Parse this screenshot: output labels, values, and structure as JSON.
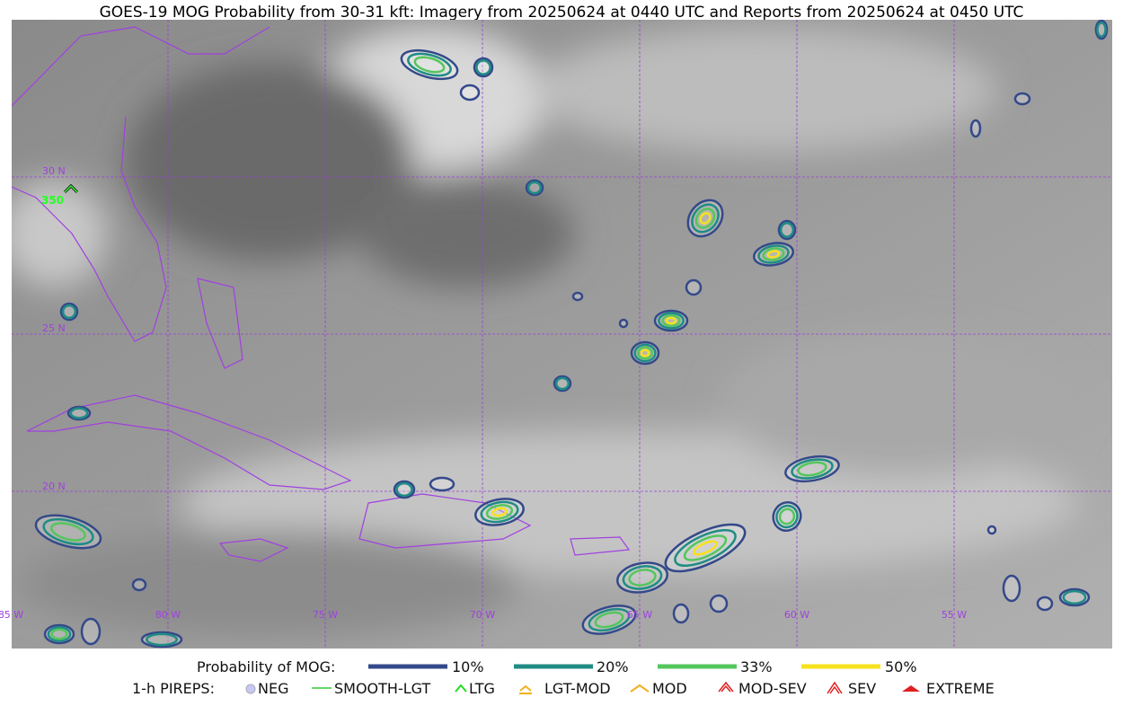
{
  "title": "GOES-19 MOG Probability from 30-31 kft: Imagery from 20250624 at 0440 UTC and Reports from 20250624 at 0450 UTC",
  "lat_labels": [
    "30 N",
    "25 N",
    "20 N"
  ],
  "lon_labels": [
    "85 W",
    "80 W",
    "75 W",
    "70 W",
    "65 W",
    "60 W",
    "55 W"
  ],
  "report_label": "350",
  "legend": {
    "mog_title": "Probability of MOG:",
    "mog_levels": [
      "10%",
      "20%",
      "33%",
      "50%"
    ],
    "pirep_title": "1-h PIREPS:",
    "pireps": [
      "NEG",
      "SMOOTH-LGT",
      "LTG",
      "LGT-MOD",
      "MOD",
      "MOD-SEV",
      "SEV",
      "EXTREME"
    ]
  }
}
